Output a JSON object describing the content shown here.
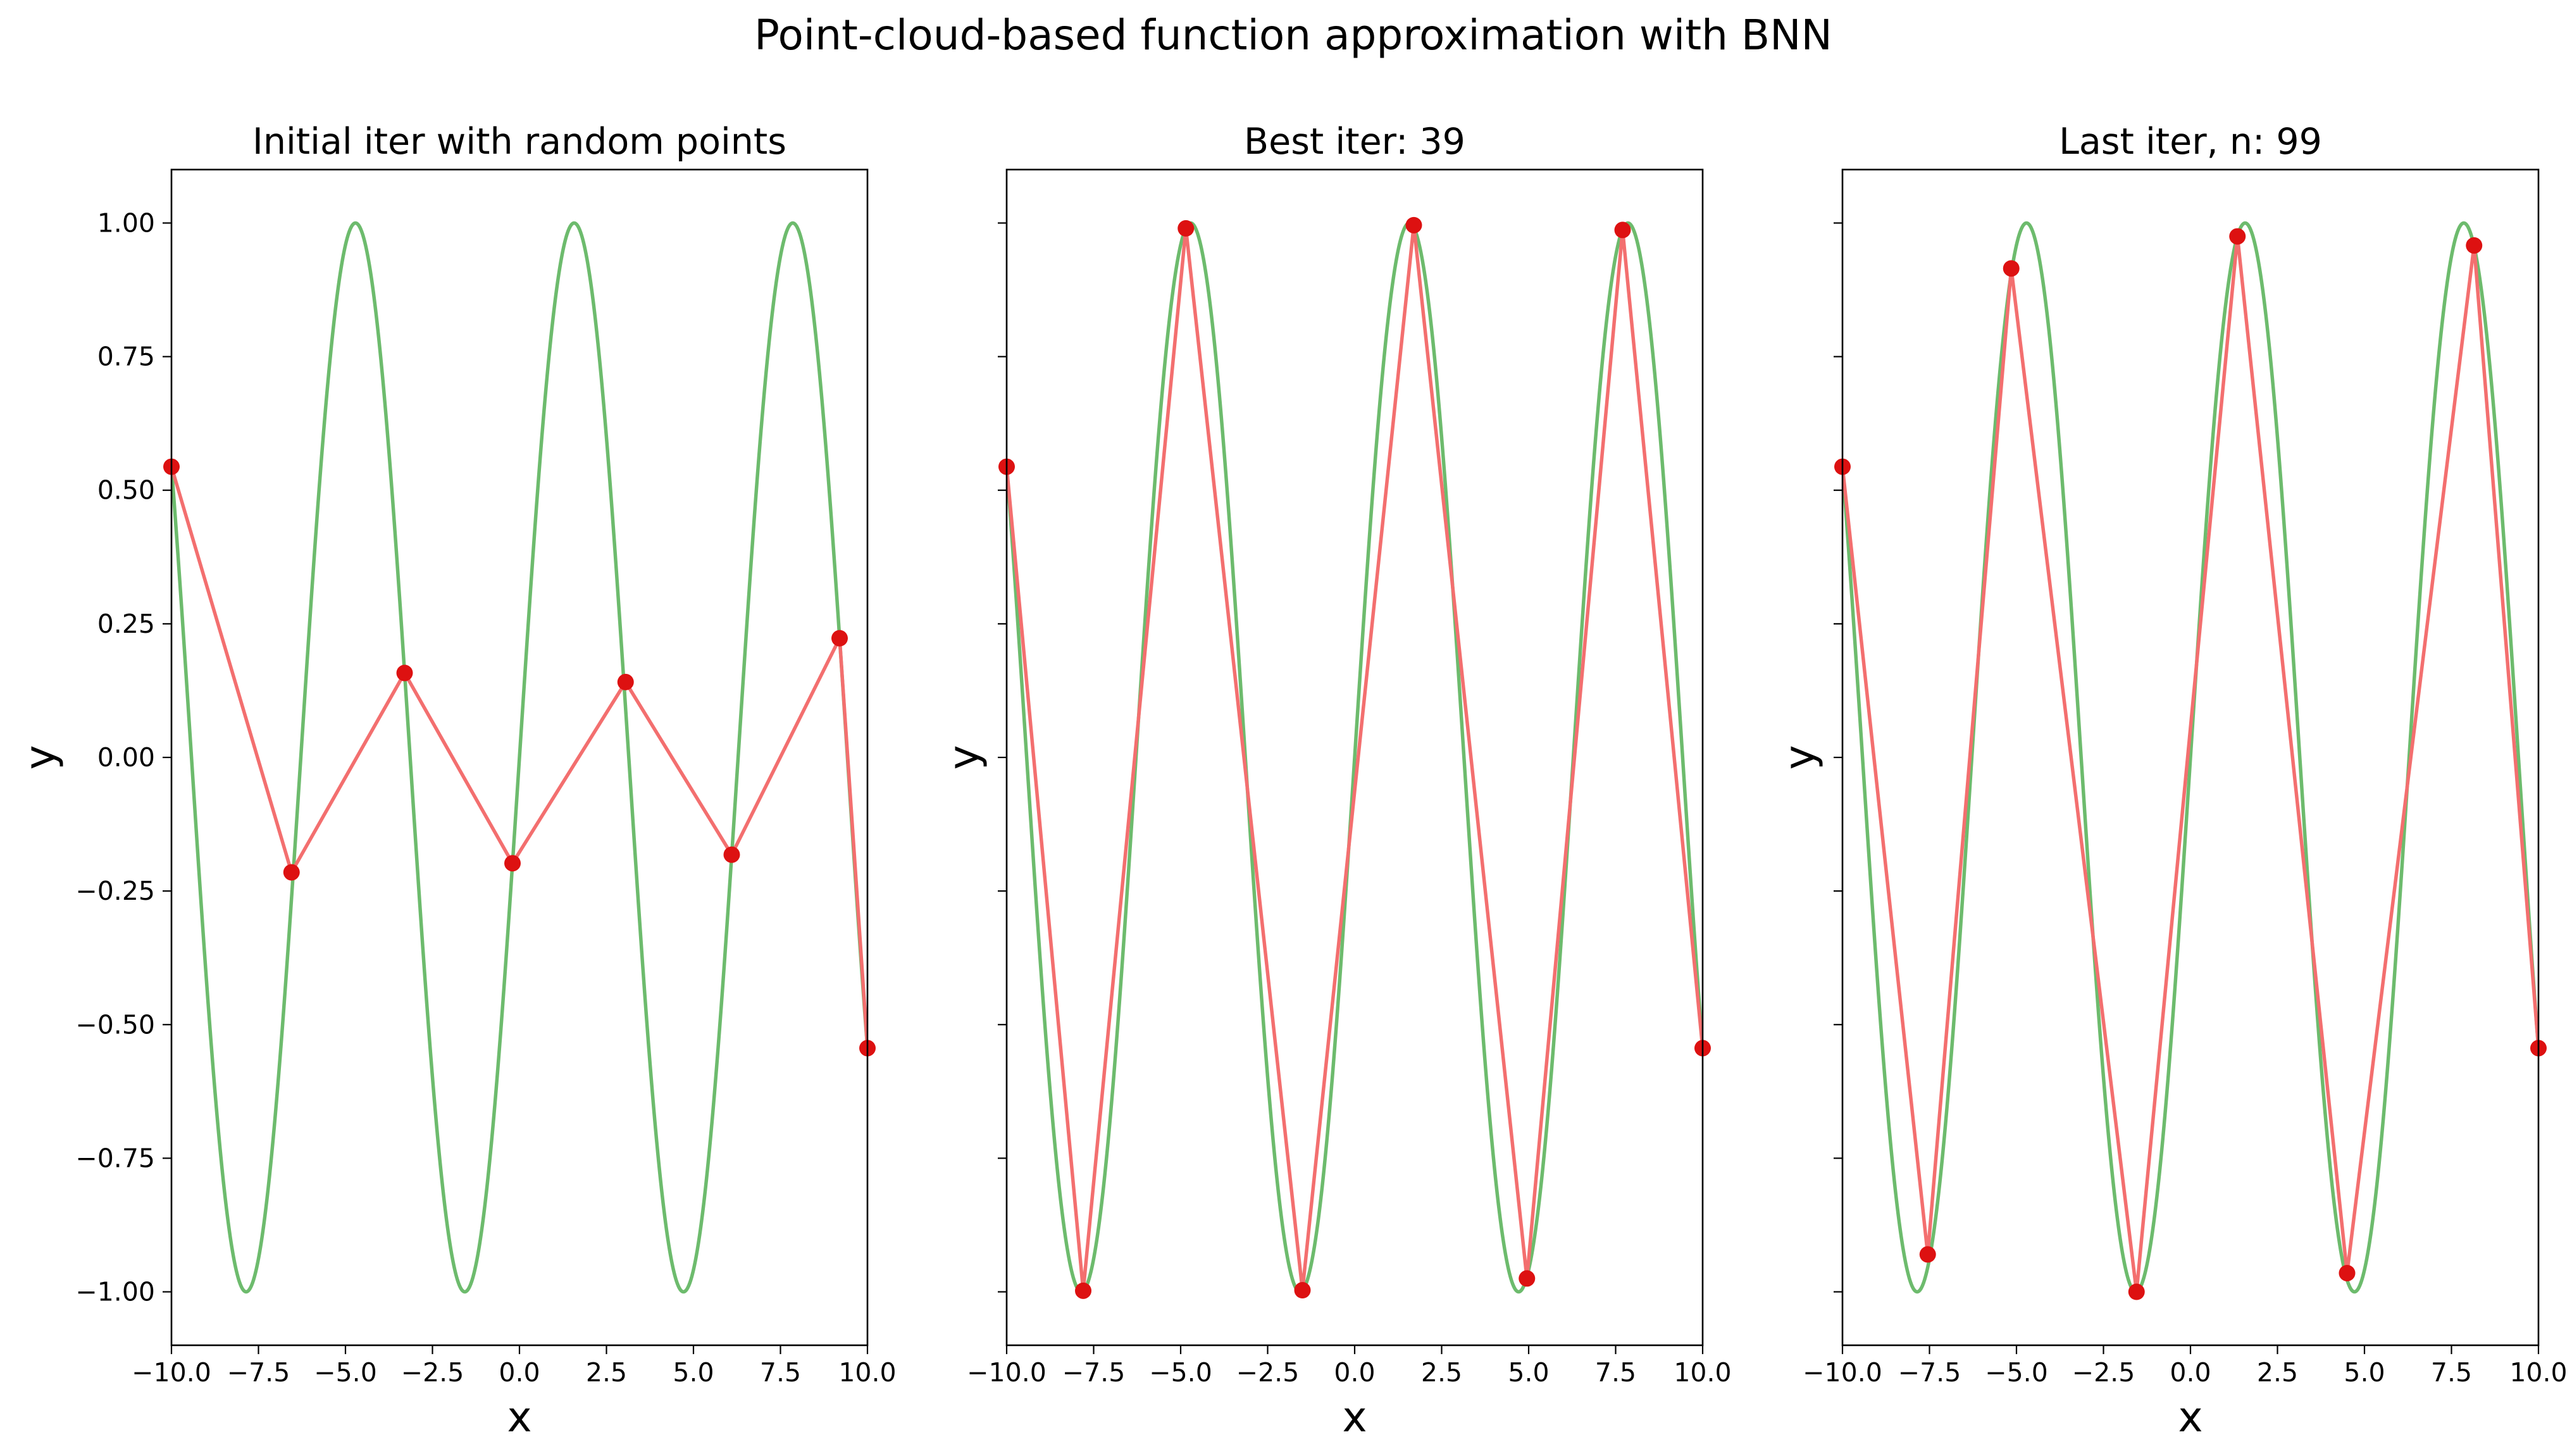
{
  "suptitle": "Point-cloud-based function approximation with BNN",
  "colors": {
    "true_function": "#6dbb6d",
    "approximation_line": "#f36f6f",
    "points": "#dd1111"
  },
  "chart_data": [
    {
      "type": "line",
      "title": "Initial iter with random points",
      "xlabel": "x",
      "ylabel": "y",
      "xlim": [
        -10,
        10
      ],
      "ylim": [
        -1.1,
        1.1
      ],
      "x_ticks": [
        "−10.0",
        "−7.5",
        "−5.0",
        "−2.5",
        "0.0",
        "2.5",
        "5.0",
        "7.5",
        "10.0"
      ],
      "y_ticks": [
        "−1.00",
        "−0.75",
        "−0.50",
        "−0.25",
        "0.00",
        "0.25",
        "0.50",
        "0.75",
        "1.00"
      ],
      "show_y_tick_labels": true,
      "grid": false,
      "true_function": "sin(x)",
      "points": {
        "x": [
          -10.0,
          -6.55,
          -3.3,
          -0.2,
          3.05,
          6.1,
          9.2,
          10.0
        ],
        "y": [
          0.544,
          -0.215,
          0.158,
          -0.198,
          0.141,
          -0.182,
          0.223,
          -0.544
        ]
      }
    },
    {
      "type": "line",
      "title": "Best iter: 39",
      "xlabel": "x",
      "ylabel": "y",
      "xlim": [
        -10,
        10
      ],
      "ylim": [
        -1.1,
        1.1
      ],
      "x_ticks": [
        "−10.0",
        "−7.5",
        "−5.0",
        "−2.5",
        "0.0",
        "2.5",
        "5.0",
        "7.5",
        "10.0"
      ],
      "y_ticks": [
        "−1.00",
        "−0.75",
        "−0.50",
        "−0.25",
        "0.00",
        "0.25",
        "0.50",
        "0.75",
        "1.00"
      ],
      "show_y_tick_labels": false,
      "grid": false,
      "true_function": "sin(x)",
      "points": {
        "x": [
          -10.0,
          -7.8,
          -4.85,
          -1.5,
          1.7,
          4.95,
          7.7,
          10.0
        ],
        "y": [
          0.544,
          -0.998,
          0.99,
          -0.997,
          0.996,
          -0.975,
          0.987,
          -0.544
        ]
      }
    },
    {
      "type": "line",
      "title": "Last iter, n: 99",
      "xlabel": "x",
      "ylabel": "y",
      "xlim": [
        -10,
        10
      ],
      "ylim": [
        -1.1,
        1.1
      ],
      "x_ticks": [
        "−10.0",
        "−7.5",
        "−5.0",
        "−2.5",
        "0.0",
        "2.5",
        "5.0",
        "7.5",
        "10.0"
      ],
      "y_ticks": [
        "−1.00",
        "−0.75",
        "−0.50",
        "−0.25",
        "0.00",
        "0.25",
        "0.50",
        "0.75",
        "1.00"
      ],
      "show_y_tick_labels": false,
      "grid": false,
      "true_function": "sin(x)",
      "points": {
        "x": [
          -10.0,
          -7.55,
          -5.15,
          -1.55,
          1.35,
          4.5,
          8.15,
          10.0
        ],
        "y": [
          0.544,
          -0.93,
          0.915,
          -1.0,
          0.975,
          -0.965,
          0.958,
          -0.544
        ]
      }
    }
  ]
}
